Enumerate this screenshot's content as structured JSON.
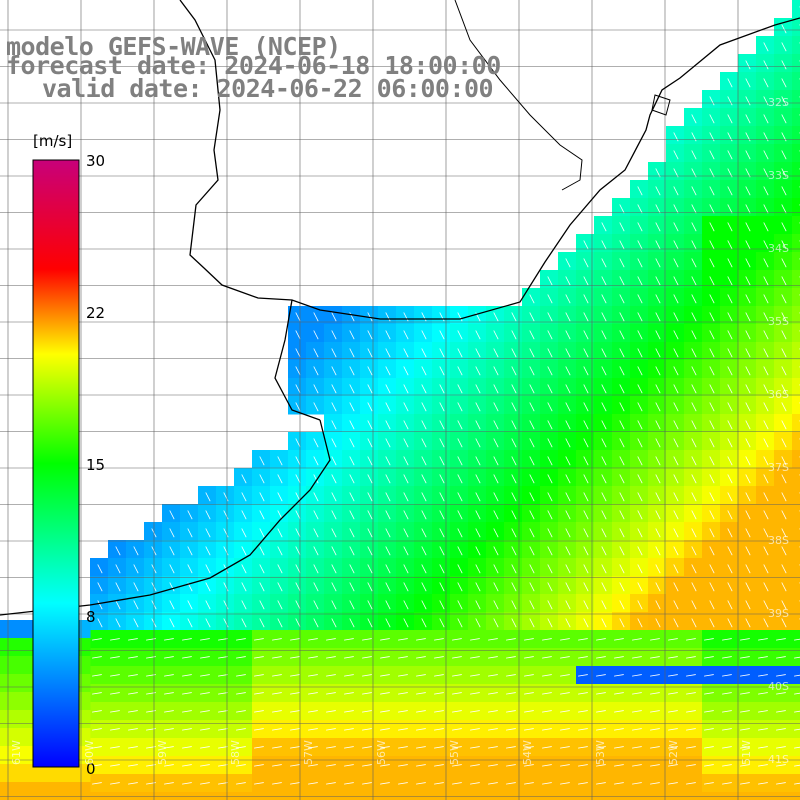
{
  "titles": {
    "line1": "modelo GEFS-WAVE (NCEP)",
    "line2": "forecast date: 2024-06-18 18:00:00",
    "line3": "valid date: 2024-06-22 06:00:00"
  },
  "colorbar": {
    "unit": "[m/s]",
    "ticks": [
      "30",
      "22",
      "15",
      "8",
      "0"
    ],
    "colors": [
      "#0000ff",
      "#00ffff",
      "#00ff00",
      "#ffff00",
      "#ff0000",
      "#c8007a"
    ]
  },
  "grid": {
    "lat_labels": [
      "32S",
      "33S",
      "34S",
      "35S",
      "36S",
      "37S",
      "38S",
      "39S",
      "40S",
      "41S"
    ],
    "lon_labels": [
      "61W",
      "60W",
      "59W",
      "58W",
      "57W",
      "56W",
      "55W",
      "54W",
      "53W",
      "52W",
      "51W"
    ]
  },
  "colors": {
    "land": "#ffffff",
    "coast": "#000000",
    "grid_line": "#606060",
    "arrow": "#ffffff"
  }
}
